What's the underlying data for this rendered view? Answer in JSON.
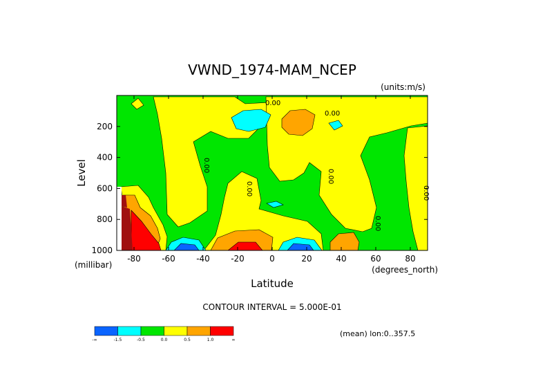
{
  "chart_data": {
    "type": "contour",
    "title": "VWND_1974-MAM_NCEP",
    "units": "(units:m/s)",
    "xlabel": "Latitude",
    "ylabel": "Level",
    "x_unit": "(degrees_north)",
    "y_unit": "(millibar)",
    "xlim": [
      -90,
      90
    ],
    "ylim": [
      1000,
      0
    ],
    "x_ticks": [
      -80,
      -60,
      -40,
      -20,
      0,
      20,
      40,
      60,
      80
    ],
    "y_ticks": [
      200,
      400,
      600,
      800,
      1000
    ],
    "contour_interval": "CONTOUR INTERVAL = 5.000E-01",
    "contour_labels": [
      "0.00",
      "0.00",
      "0.00",
      "0.00",
      "0.00",
      "0.00",
      "0.00"
    ],
    "legend_tick_labels": [
      "-∞",
      "-1.5",
      "-0.5",
      "0.0",
      "0.5",
      "1.0",
      "∞"
    ],
    "legend_colors": [
      "#0a64ff",
      "#00ffff",
      "#00e600",
      "#ffff00",
      "#ffa500",
      "#ff0000"
    ],
    "note": "(mean) lon:0..357.5"
  }
}
